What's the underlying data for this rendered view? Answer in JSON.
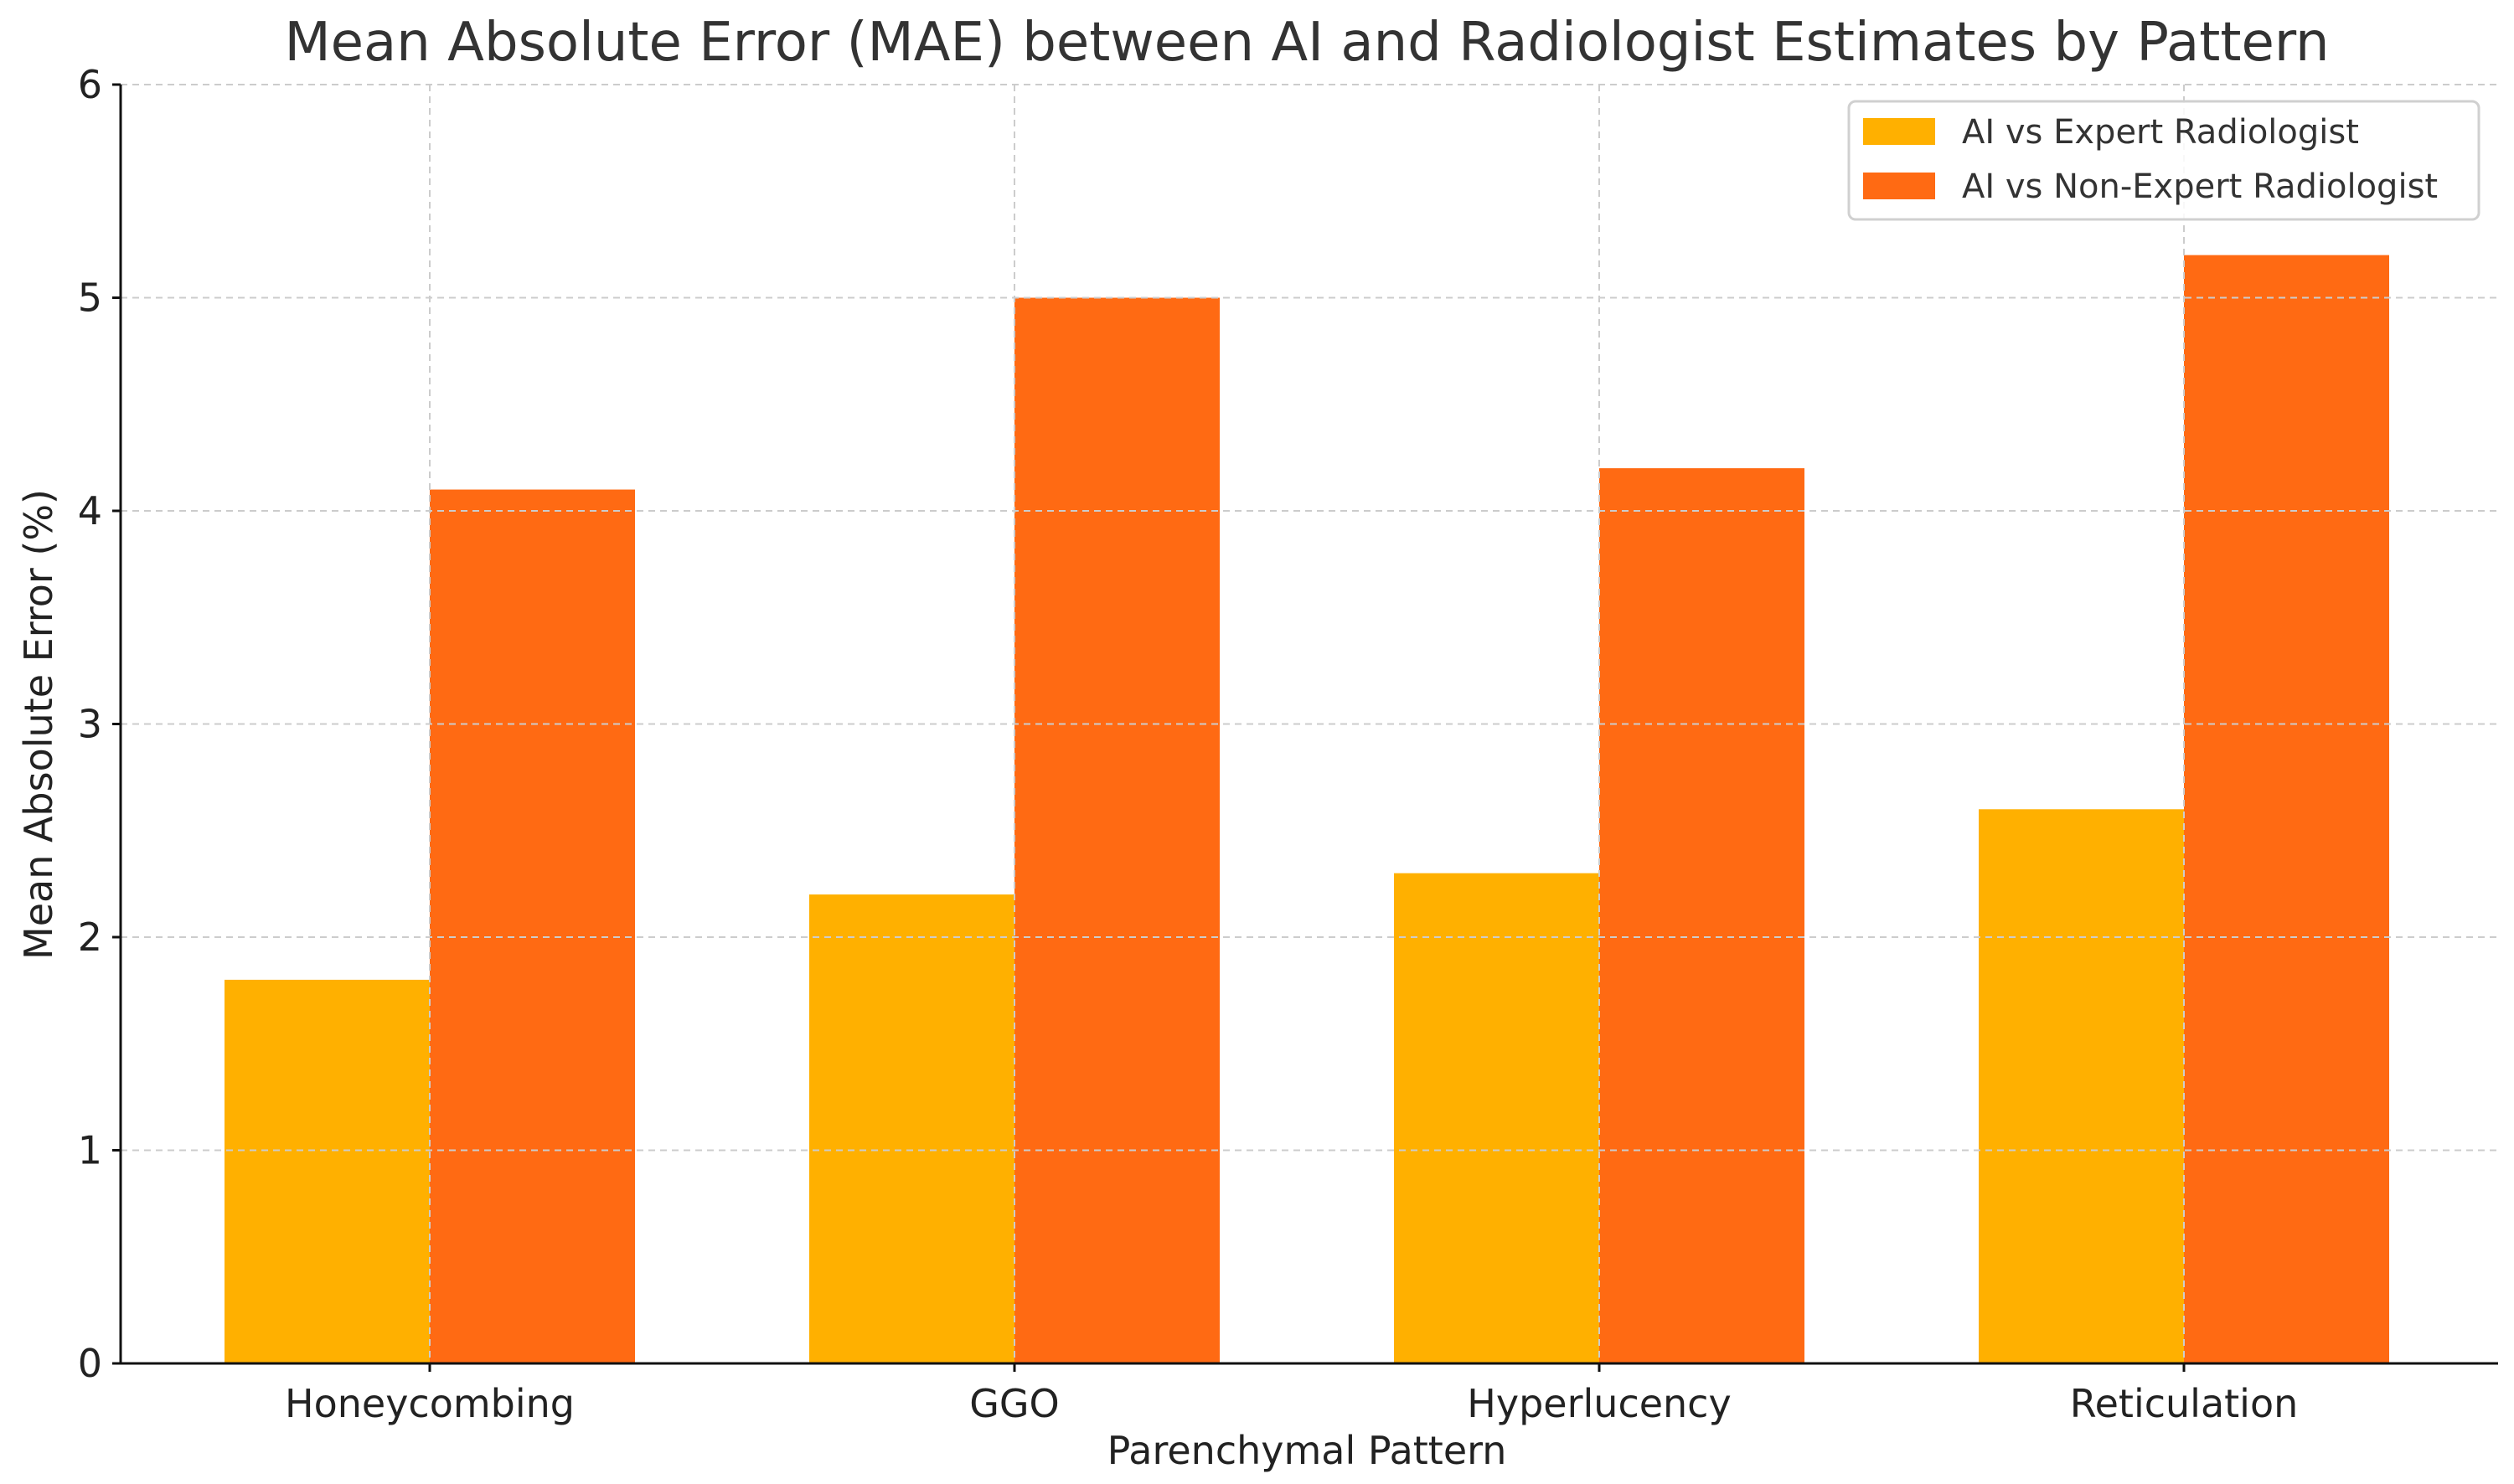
{
  "chart_data": {
    "type": "bar",
    "title": "Mean Absolute Error (MAE) between AI and Radiologist Estimates by Pattern",
    "xlabel": "Parenchymal Pattern",
    "ylabel": "Mean Absolute Error (%)",
    "categories": [
      "Honeycombing",
      "GGO",
      "Hyperlucency",
      "Reticulation"
    ],
    "series": [
      {
        "name": "AI vs Expert Radiologist",
        "values": [
          1.8,
          2.2,
          2.3,
          2.6
        ],
        "color": "#FFB000"
      },
      {
        "name": "AI vs Non-Expert Radiologist",
        "values": [
          4.1,
          5.0,
          4.2,
          5.2
        ],
        "color": "#FF6A13"
      }
    ],
    "ylim": [
      0,
      6
    ],
    "yticks": [
      "0",
      "1",
      "2",
      "3",
      "4",
      "5",
      "6"
    ],
    "grid": true,
    "legend": "top-right"
  }
}
